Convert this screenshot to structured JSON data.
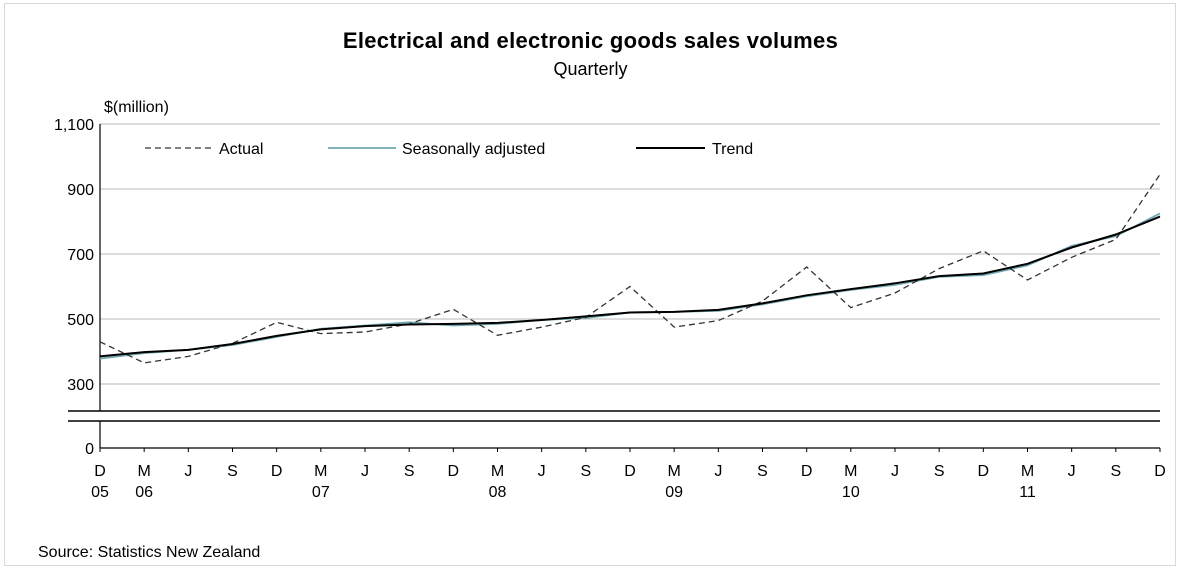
{
  "chart_data": {
    "type": "line",
    "title": "Electrical and electronic goods sales volumes",
    "subtitle": "Quarterly",
    "ylabel": "$(million)",
    "y_ticks": [
      0,
      300,
      500,
      700,
      900,
      1100
    ],
    "y_tick_labels": [
      "0",
      "300",
      "500",
      "700",
      "900",
      "1,100"
    ],
    "y_axis_break": true,
    "ylim_upper_panel": [
      200,
      1100
    ],
    "grid": true,
    "legend_position": "top-left",
    "quarter_labels": [
      "D",
      "M",
      "J",
      "S",
      "D",
      "M",
      "J",
      "S",
      "D",
      "M",
      "J",
      "S",
      "D",
      "M",
      "J",
      "S",
      "D",
      "M",
      "J",
      "S",
      "D",
      "M",
      "J",
      "S",
      "D"
    ],
    "year_labels": [
      {
        "quarter_index": 0,
        "label": "05"
      },
      {
        "quarter_index": 1,
        "label": "06"
      },
      {
        "quarter_index": 5,
        "label": "07"
      },
      {
        "quarter_index": 9,
        "label": "08"
      },
      {
        "quarter_index": 13,
        "label": "09"
      },
      {
        "quarter_index": 17,
        "label": "10"
      },
      {
        "quarter_index": 21,
        "label": "11"
      }
    ],
    "series": [
      {
        "name": "Actual",
        "style": "dashed",
        "color": "#333333",
        "values": [
          430,
          365,
          385,
          425,
          490,
          455,
          460,
          485,
          530,
          450,
          475,
          505,
          600,
          475,
          495,
          555,
          660,
          535,
          580,
          655,
          710,
          620,
          690,
          745,
          945
        ]
      },
      {
        "name": "Seasonally adjusted",
        "style": "solid",
        "color": "#6fa8b0",
        "values": [
          378,
          395,
          405,
          420,
          445,
          470,
          480,
          490,
          480,
          485,
          497,
          503,
          520,
          522,
          525,
          545,
          570,
          590,
          605,
          630,
          635,
          665,
          725,
          755,
          825
        ]
      },
      {
        "name": "Trend",
        "style": "solid",
        "color": "#000000",
        "values": [
          385,
          398,
          405,
          423,
          448,
          468,
          478,
          483,
          485,
          488,
          497,
          508,
          520,
          522,
          528,
          548,
          573,
          592,
          610,
          632,
          640,
          670,
          720,
          760,
          815
        ]
      }
    ]
  },
  "source": "Source: Statistics New Zealand"
}
